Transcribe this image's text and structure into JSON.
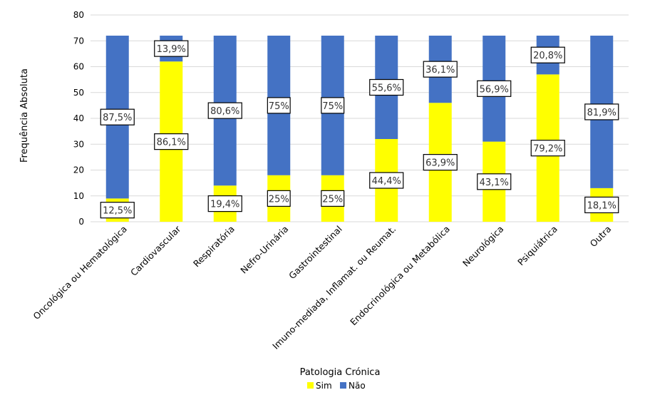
{
  "chart_data": {
    "type": "bar",
    "stacked": true,
    "title": "",
    "xlabel": "Patologia Crónica",
    "ylabel": "Frequência Absoluta",
    "ylim": [
      0,
      80
    ],
    "yticks": [
      0,
      10,
      20,
      30,
      40,
      50,
      60,
      70,
      80
    ],
    "grid": true,
    "legend_position": "bottom",
    "categories": [
      "Oncológica ou Hematológica",
      "Cardiovascular",
      "Respiratória",
      "Nefro-Urinária",
      "Gastrointestinal",
      "Imuno-mediada, Inflamat. ou Reumat.",
      "Endocrinológica ou Metabólica",
      "Neurológica",
      "Psiquiátrica",
      "Outra"
    ],
    "series": [
      {
        "name": "Sim",
        "color": "#FFFF00",
        "values": [
          9,
          62,
          14,
          18,
          18,
          32,
          46,
          31,
          57,
          13
        ],
        "labels": [
          "12,5%",
          "86,1%",
          "19,4%",
          "25%",
          "25%",
          "44,4%",
          "63,9%",
          "43,1%",
          "79,2%",
          "18,1%"
        ]
      },
      {
        "name": "Não",
        "color": "#4472C4",
        "values": [
          63,
          10,
          58,
          54,
          54,
          40,
          26,
          41,
          15,
          59
        ],
        "labels": [
          "87,5%",
          "13,9%",
          "80,6%",
          "75%",
          "75%",
          "55,6%",
          "36,1%",
          "56,9%",
          "20,8%",
          "81,9%"
        ]
      }
    ]
  }
}
